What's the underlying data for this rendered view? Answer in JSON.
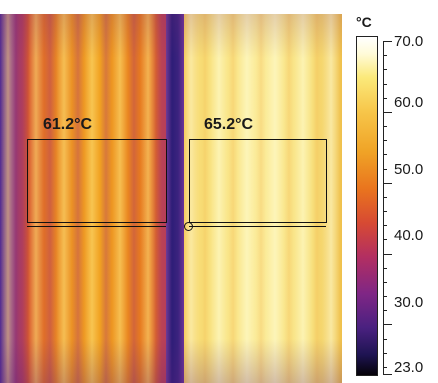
{
  "image": {
    "description_icon": "thermal-image",
    "left_panel_color": "#e98a25",
    "right_panel_color": "#fbec9b",
    "divider_color": "#2e1d78"
  },
  "regions": [
    {
      "label": "61.2°C"
    },
    {
      "label": "65.2°C"
    }
  ],
  "scale": {
    "unit": "°C",
    "max": 70.0,
    "min": 23.0,
    "ticks": [
      "70.0",
      "60.0",
      "50.0",
      "40.0",
      "30.0",
      "23.0"
    ]
  }
}
